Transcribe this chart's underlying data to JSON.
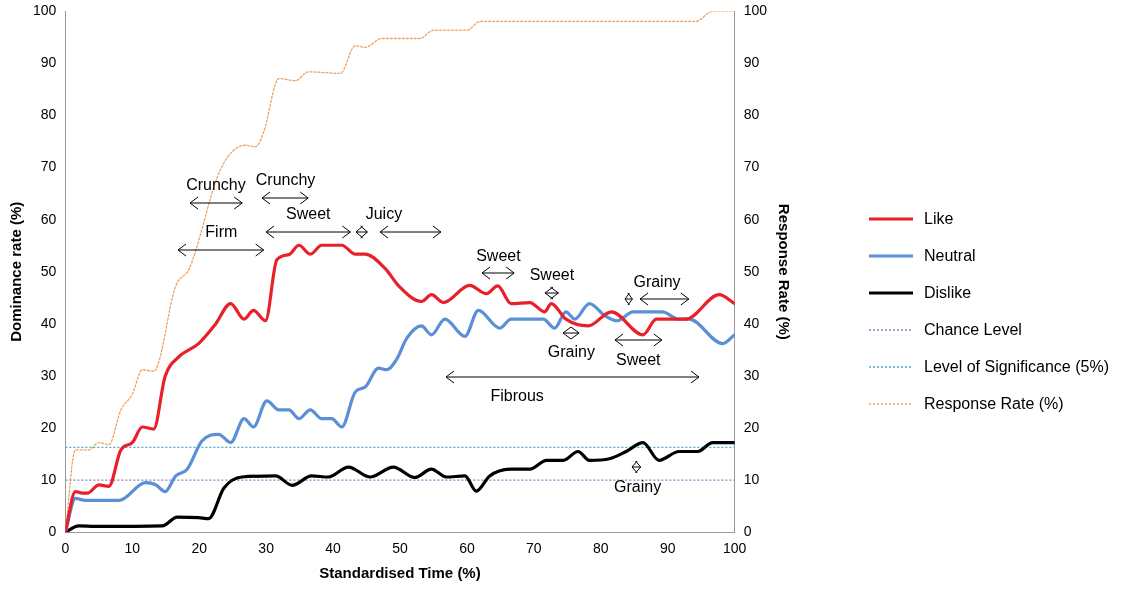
{
  "chart_data": {
    "type": "line",
    "xlabel": "Standardised Time (%)",
    "ylabel": "Dominance rate (%)",
    "y2label": "Response Rate (%)",
    "xlim": [
      0,
      100
    ],
    "xticks": [
      0,
      10,
      20,
      30,
      40,
      50,
      60,
      70,
      80,
      90,
      100
    ],
    "ylim": [
      0,
      100
    ],
    "yticks": [
      0,
      10,
      20,
      30,
      40,
      50,
      60,
      70,
      80,
      90,
      100
    ],
    "y2lim": [
      0,
      100
    ],
    "y2ticks": [
      0,
      10,
      20,
      30,
      40,
      50,
      60,
      70,
      80,
      90,
      100
    ],
    "grid": false,
    "legend": "right",
    "marker": "none",
    "series": [
      {
        "name": "Like",
        "color": "#e8202a",
        "line_style": "solid",
        "x": [
          0,
          1.5,
          2.5,
          3.3,
          5.0,
          6.5,
          8.3,
          10.0,
          11.5,
          13.2,
          14.9,
          16.9,
          19.9,
          22.4,
          24.7,
          26.7,
          28.1,
          29.9,
          31.6,
          33.4,
          34.9,
          36.6,
          38.3,
          41.3,
          43.3,
          44.8,
          47.8,
          49.8,
          53.2,
          54.7,
          56.5,
          60.4,
          62.9,
          64.6,
          66.6,
          69.4,
          71.6,
          72.6,
          74.8,
          78.1,
          81.6,
          86.3,
          88.3,
          92.7,
          97.7,
          100
        ],
        "values": [
          0,
          7.8,
          7.5,
          7.5,
          9.1,
          8.8,
          15.8,
          17.2,
          20.2,
          19.8,
          29.9,
          33.6,
          36.2,
          39.9,
          43.9,
          40.9,
          42.6,
          40.6,
          52.3,
          53.3,
          55.1,
          53.4,
          55.1,
          55.1,
          53.4,
          53.4,
          50.6,
          47.3,
          44.3,
          45.6,
          44.1,
          47.4,
          45.8,
          47.3,
          43.9,
          44.1,
          42.3,
          43.9,
          40.9,
          39.6,
          42.3,
          37.9,
          40.9,
          40.9,
          45.6,
          43.9
        ]
      },
      {
        "name": "Neutral",
        "color": "#5b8fd6",
        "line_style": "solid",
        "x": [
          0,
          1.5,
          3.0,
          8.0,
          12.0,
          13.5,
          14.9,
          16.5,
          18.2,
          20.4,
          22.9,
          24.7,
          26.7,
          28.1,
          30.1,
          31.9,
          33.4,
          34.9,
          36.6,
          38.3,
          39.8,
          41.3,
          43.3,
          44.8,
          46.8,
          48.0,
          49.5,
          51.0,
          53.2,
          54.7,
          56.7,
          59.7,
          61.7,
          64.9,
          66.6,
          71.4,
          73.1,
          74.8,
          76.1,
          78.3,
          80.6,
          82.5,
          84.8,
          89.2,
          91.7,
          93.2,
          98.2,
          100
        ],
        "values": [
          0,
          6.5,
          6.1,
          6.1,
          9.5,
          9.1,
          7.8,
          10.8,
          12.1,
          17.5,
          18.8,
          17.2,
          21.8,
          20.2,
          25.2,
          23.5,
          23.5,
          21.8,
          23.5,
          21.8,
          21.8,
          20.2,
          26.9,
          27.9,
          31.5,
          31.2,
          33.2,
          37.2,
          39.6,
          37.9,
          40.9,
          37.6,
          42.6,
          39.2,
          40.9,
          40.9,
          39.2,
          42.3,
          40.9,
          43.9,
          41.6,
          40.6,
          42.3,
          42.3,
          40.9,
          40.9,
          36.2,
          37.9
        ]
      },
      {
        "name": "Dislike",
        "color": "#000000",
        "line_style": "solid",
        "x": [
          0,
          2.0,
          4.5,
          14.5,
          16.7,
          19.9,
          21.4,
          23.7,
          26.4,
          31.4,
          33.9,
          36.8,
          39.3,
          42.3,
          45.5,
          49.0,
          52.2,
          54.7,
          56.9,
          59.7,
          61.4,
          63.4,
          66.6,
          69.4,
          71.9,
          74.4,
          76.6,
          78.3,
          81.3,
          83.8,
          86.3,
          88.7,
          91.7,
          94.5,
          96.7,
          100
        ],
        "values": [
          0,
          1.2,
          1.1,
          1.2,
          2.9,
          2.8,
          2.6,
          8.5,
          10.6,
          10.8,
          9.0,
          10.8,
          10.6,
          12.5,
          10.6,
          12.5,
          10.5,
          12.1,
          10.6,
          10.8,
          7.9,
          10.8,
          12.1,
          12.1,
          13.8,
          13.8,
          15.5,
          13.8,
          14.1,
          15.5,
          17.2,
          13.8,
          15.5,
          15.5,
          17.2,
          17.2
        ]
      },
      {
        "name": "Response Rate (%)",
        "color": "#f0a060",
        "line_style": "dotted",
        "axis": "y2",
        "x": [
          0,
          1.5,
          3.5,
          5.0,
          6.5,
          8.3,
          10.0,
          11.5,
          13.2,
          16.5,
          18.5,
          23.2,
          26.9,
          28.4,
          29.6,
          31.9,
          34.4,
          36.3,
          41.1,
          43.3,
          44.8,
          47.3,
          53.0,
          55.0,
          60.0,
          62.0,
          94.2,
          96.7,
          100
        ],
        "values": [
          0,
          15.8,
          15.8,
          17.2,
          16.8,
          23.5,
          26.5,
          31.2,
          30.9,
          47.3,
          50.6,
          69.7,
          74.3,
          74.0,
          76.7,
          87.1,
          86.7,
          88.4,
          88.1,
          93.4,
          93.1,
          94.8,
          94.8,
          96.4,
          96.4,
          98.1,
          98.1,
          100,
          100
        ]
      }
    ],
    "ref_lines": [
      {
        "axis": "y",
        "value": 10,
        "label": "Chance Level",
        "color": "#8e7cc3",
        "line_style": "dotted"
      },
      {
        "axis": "y",
        "value": 16.3,
        "label": "Level of Significance (5%)",
        "color": "#4bacc6",
        "line_style": "dotted"
      }
    ],
    "annotations": [
      "Crunchy",
      "Crunchy",
      "Firm",
      "Sweet",
      "Juicy",
      "Sweet",
      "Sweet",
      "Grainy",
      "Grainy",
      "Sweet",
      "Fibrous",
      "Grainy"
    ]
  }
}
